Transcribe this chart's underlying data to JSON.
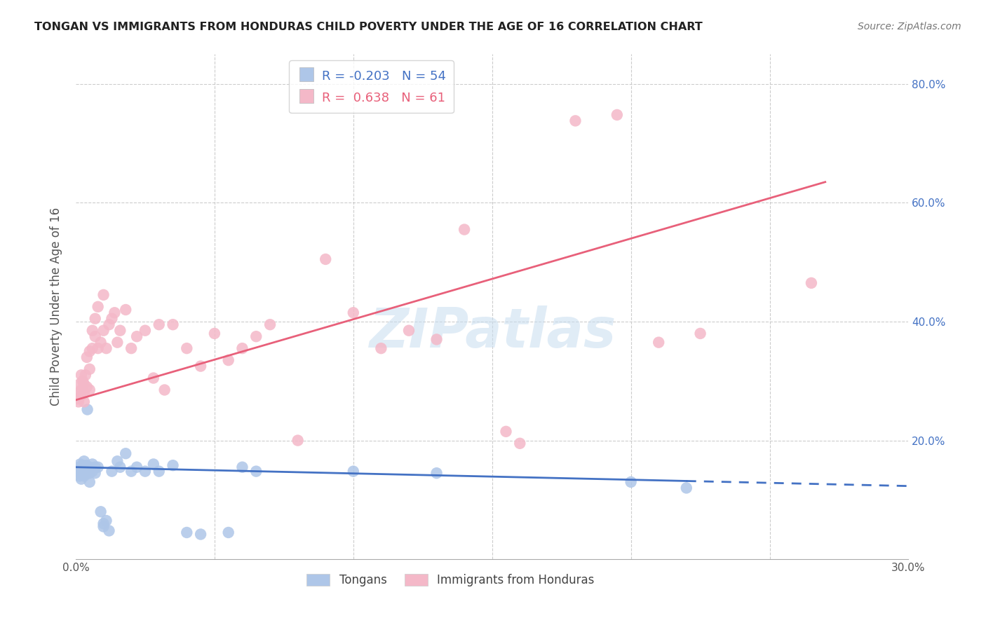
{
  "title": "TONGAN VS IMMIGRANTS FROM HONDURAS CHILD POVERTY UNDER THE AGE OF 16 CORRELATION CHART",
  "source": "Source: ZipAtlas.com",
  "ylabel": "Child Poverty Under the Age of 16",
  "x_min": 0.0,
  "x_max": 0.3,
  "y_min": 0.0,
  "y_max": 0.85,
  "legend_blue_r": "-0.203",
  "legend_blue_n": "54",
  "legend_pink_r": "0.638",
  "legend_pink_n": "61",
  "blue_color": "#aec6e8",
  "pink_color": "#f4b8c8",
  "blue_line_color": "#4472c4",
  "pink_line_color": "#e8607a",
  "watermark": "ZIPatlas",
  "blue_line_x0": 0.0,
  "blue_line_y0": 0.155,
  "blue_line_x1": 0.255,
  "blue_line_y1": 0.128,
  "blue_line_solid_end": 0.22,
  "blue_line_dash_end": 0.3,
  "pink_line_x0": 0.0,
  "pink_line_y0": 0.268,
  "pink_line_x1": 0.27,
  "pink_line_y1": 0.635,
  "tongan_x": [
    0.0008,
    0.001,
    0.0012,
    0.0013,
    0.0015,
    0.0016,
    0.0018,
    0.002,
    0.002,
    0.0022,
    0.0025,
    0.0025,
    0.003,
    0.003,
    0.003,
    0.0032,
    0.0035,
    0.0038,
    0.004,
    0.004,
    0.0042,
    0.0045,
    0.005,
    0.005,
    0.005,
    0.006,
    0.006,
    0.007,
    0.007,
    0.008,
    0.009,
    0.01,
    0.01,
    0.011,
    0.012,
    0.013,
    0.015,
    0.016,
    0.018,
    0.02,
    0.022,
    0.025,
    0.028,
    0.03,
    0.035,
    0.04,
    0.045,
    0.055,
    0.06,
    0.065,
    0.1,
    0.13,
    0.2,
    0.22
  ],
  "tongan_y": [
    0.15,
    0.148,
    0.155,
    0.14,
    0.145,
    0.16,
    0.155,
    0.15,
    0.135,
    0.145,
    0.158,
    0.142,
    0.165,
    0.155,
    0.14,
    0.152,
    0.148,
    0.158,
    0.155,
    0.148,
    0.252,
    0.145,
    0.155,
    0.145,
    0.13,
    0.16,
    0.148,
    0.155,
    0.145,
    0.155,
    0.08,
    0.06,
    0.055,
    0.065,
    0.048,
    0.148,
    0.165,
    0.155,
    0.178,
    0.148,
    0.155,
    0.148,
    0.16,
    0.148,
    0.158,
    0.045,
    0.042,
    0.045,
    0.155,
    0.148,
    0.148,
    0.145,
    0.13,
    0.12
  ],
  "honduras_x": [
    0.0008,
    0.001,
    0.0012,
    0.0015,
    0.0018,
    0.002,
    0.002,
    0.0025,
    0.003,
    0.003,
    0.003,
    0.0035,
    0.004,
    0.004,
    0.005,
    0.005,
    0.005,
    0.006,
    0.006,
    0.007,
    0.007,
    0.008,
    0.008,
    0.009,
    0.01,
    0.01,
    0.011,
    0.012,
    0.013,
    0.014,
    0.015,
    0.016,
    0.018,
    0.02,
    0.022,
    0.025,
    0.028,
    0.03,
    0.032,
    0.035,
    0.04,
    0.045,
    0.05,
    0.055,
    0.06,
    0.065,
    0.07,
    0.08,
    0.09,
    0.1,
    0.11,
    0.12,
    0.13,
    0.14,
    0.155,
    0.16,
    0.18,
    0.195,
    0.21,
    0.225,
    0.265
  ],
  "honduras_y": [
    0.27,
    0.265,
    0.28,
    0.295,
    0.275,
    0.31,
    0.285,
    0.3,
    0.295,
    0.28,
    0.265,
    0.31,
    0.34,
    0.29,
    0.35,
    0.32,
    0.285,
    0.385,
    0.355,
    0.405,
    0.375,
    0.425,
    0.355,
    0.365,
    0.445,
    0.385,
    0.355,
    0.395,
    0.405,
    0.415,
    0.365,
    0.385,
    0.42,
    0.355,
    0.375,
    0.385,
    0.305,
    0.395,
    0.285,
    0.395,
    0.355,
    0.325,
    0.38,
    0.335,
    0.355,
    0.375,
    0.395,
    0.2,
    0.505,
    0.415,
    0.355,
    0.385,
    0.37,
    0.555,
    0.215,
    0.195,
    0.738,
    0.748,
    0.365,
    0.38,
    0.465
  ]
}
